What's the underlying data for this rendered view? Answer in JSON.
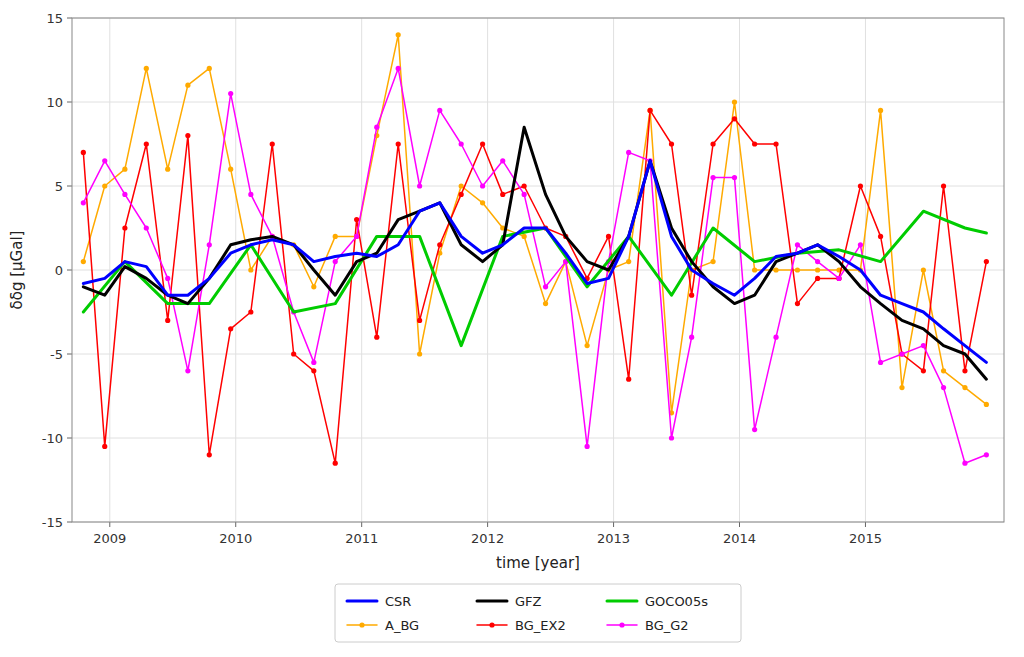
{
  "chart_data": {
    "type": "line",
    "xlabel": "time [year]",
    "ylabel": "δδg [μGal]",
    "xlim": [
      2008.7,
      2016.1
    ],
    "ylim": [
      -15,
      15
    ],
    "xticks": [
      2009,
      2010,
      2011,
      2012,
      2013,
      2014,
      2015
    ],
    "yticks": [
      -15,
      -10,
      -5,
      0,
      5,
      10,
      15
    ],
    "grid": true,
    "legend": "bottom",
    "series": [
      {
        "name": "CSR",
        "color": "#0000ff",
        "x": [
          2008.79,
          2008.96,
          2009.12,
          2009.29,
          2009.46,
          2009.62,
          2009.79,
          2009.96,
          2010.12,
          2010.29,
          2010.46,
          2010.62,
          2010.79,
          2010.96,
          2011.12,
          2011.29,
          2011.46,
          2011.62,
          2011.79,
          2011.96,
          2012.12,
          2012.29,
          2012.46,
          2012.62,
          2012.79,
          2012.96,
          2013.12,
          2013.29,
          2013.46,
          2013.62,
          2013.79,
          2013.96,
          2014.12,
          2014.29,
          2014.46,
          2014.62,
          2014.79,
          2014.96,
          2015.12,
          2015.29,
          2015.46,
          2015.62,
          2015.79,
          2015.96
        ],
        "values": [
          -0.8,
          -0.5,
          0.5,
          0.2,
          -1.5,
          -1.5,
          -0.5,
          1.0,
          1.5,
          1.8,
          1.5,
          0.5,
          0.8,
          1.0,
          0.8,
          1.5,
          3.5,
          4.0,
          2.0,
          1.0,
          1.5,
          2.5,
          2.5,
          1.0,
          -0.8,
          -0.5,
          2.0,
          6.5,
          2.0,
          0.0,
          -0.8,
          -1.5,
          -0.5,
          0.8,
          1.0,
          1.5,
          0.8,
          0.0,
          -1.5,
          -2.0,
          -2.5,
          -3.5,
          -4.5,
          -5.5
        ]
      },
      {
        "name": "GFZ",
        "color": "#000000",
        "x": [
          2008.79,
          2008.96,
          2009.12,
          2009.29,
          2009.46,
          2009.62,
          2009.79,
          2009.96,
          2010.12,
          2010.29,
          2010.46,
          2010.62,
          2010.79,
          2010.96,
          2011.12,
          2011.29,
          2011.46,
          2011.62,
          2011.79,
          2011.96,
          2012.12,
          2012.29,
          2012.46,
          2012.62,
          2012.79,
          2012.96,
          2013.12,
          2013.29,
          2013.46,
          2013.62,
          2013.79,
          2013.96,
          2014.12,
          2014.29,
          2014.46,
          2014.62,
          2014.79,
          2014.96,
          2015.12,
          2015.29,
          2015.46,
          2015.62,
          2015.79,
          2015.96
        ],
        "values": [
          -1.0,
          -1.5,
          0.2,
          -0.5,
          -1.5,
          -2.0,
          -0.5,
          1.5,
          1.8,
          2.0,
          1.5,
          0.0,
          -1.5,
          0.5,
          1.0,
          3.0,
          3.5,
          4.0,
          1.5,
          0.5,
          1.5,
          8.5,
          4.5,
          2.0,
          0.5,
          0.0,
          2.0,
          6.5,
          2.5,
          0.5,
          -1.0,
          -2.0,
          -1.5,
          0.5,
          1.0,
          1.5,
          0.5,
          -1.0,
          -2.0,
          -3.0,
          -3.5,
          -4.5,
          -5.0,
          -6.5
        ]
      },
      {
        "name": "GOCO05s",
        "color": "#00cc00",
        "x": [
          2008.79,
          2009.12,
          2009.46,
          2009.79,
          2010.12,
          2010.46,
          2010.79,
          2011.12,
          2011.46,
          2011.79,
          2012.12,
          2012.46,
          2012.79,
          2013.12,
          2013.46,
          2013.79,
          2014.12,
          2014.46,
          2014.79,
          2015.12,
          2015.46,
          2015.79,
          2015.96
        ],
        "values": [
          -2.5,
          0.5,
          -2.0,
          -2.0,
          1.5,
          -2.5,
          -2.0,
          2.0,
          2.0,
          -4.5,
          2.0,
          2.5,
          -1.0,
          2.0,
          -1.5,
          2.5,
          0.5,
          1.0,
          1.2,
          0.5,
          3.5,
          2.5,
          2.2
        ]
      },
      {
        "name": "A_BG",
        "color": "#ffaa00",
        "marker": "circle",
        "x": [
          2008.79,
          2008.96,
          2009.12,
          2009.29,
          2009.46,
          2009.62,
          2009.79,
          2009.96,
          2010.12,
          2010.29,
          2010.46,
          2010.62,
          2010.79,
          2010.96,
          2011.12,
          2011.29,
          2011.46,
          2011.62,
          2011.79,
          2011.96,
          2012.12,
          2012.29,
          2012.46,
          2012.62,
          2012.79,
          2012.96,
          2013.12,
          2013.29,
          2013.46,
          2013.62,
          2013.79,
          2013.96,
          2014.12,
          2014.29,
          2014.46,
          2014.62,
          2014.79,
          2014.96,
          2015.12,
          2015.29,
          2015.46,
          2015.62,
          2015.79,
          2015.96
        ],
        "values": [
          0.5,
          5.0,
          6.0,
          12.0,
          6.0,
          11.0,
          12.0,
          6.0,
          0.0,
          2.0,
          1.5,
          -1.0,
          2.0,
          2.0,
          8.0,
          14.0,
          -5.0,
          1.0,
          5.0,
          4.0,
          2.5,
          2.0,
          -2.0,
          0.5,
          -4.5,
          0.0,
          0.5,
          9.5,
          -8.5,
          0.0,
          0.5,
          10.0,
          0.0,
          0.0,
          0.0,
          0.0,
          0.0,
          0.0,
          9.5,
          -7.0,
          0.0,
          -6.0,
          -7.0,
          -8.0
        ]
      },
      {
        "name": "BG_EX2",
        "color": "#ff0000",
        "marker": "circle",
        "x": [
          2008.79,
          2008.96,
          2009.12,
          2009.29,
          2009.46,
          2009.62,
          2009.79,
          2009.96,
          2010.12,
          2010.29,
          2010.46,
          2010.62,
          2010.79,
          2010.96,
          2011.12,
          2011.29,
          2011.46,
          2011.62,
          2011.79,
          2011.96,
          2012.12,
          2012.29,
          2012.46,
          2012.62,
          2012.79,
          2012.96,
          2013.12,
          2013.29,
          2013.46,
          2013.62,
          2013.79,
          2013.96,
          2014.12,
          2014.29,
          2014.46,
          2014.62,
          2014.79,
          2014.96,
          2015.12,
          2015.29,
          2015.46,
          2015.62,
          2015.79,
          2015.96
        ],
        "values": [
          7.0,
          -10.5,
          2.5,
          7.5,
          -3.0,
          8.0,
          -11.0,
          -3.5,
          -2.5,
          7.5,
          -5.0,
          -6.0,
          -11.5,
          3.0,
          -4.0,
          7.5,
          -3.0,
          1.5,
          4.5,
          7.5,
          4.5,
          5.0,
          2.5,
          2.0,
          -0.5,
          2.0,
          -6.5,
          9.5,
          7.5,
          -1.5,
          7.5,
          9.0,
          7.5,
          7.5,
          -2.0,
          -0.5,
          -0.5,
          5.0,
          2.0,
          -5.0,
          -6.0,
          5.0,
          -6.0,
          0.5
        ]
      },
      {
        "name": "BG_G2",
        "color": "#ff00ff",
        "marker": "circle",
        "x": [
          2008.79,
          2008.96,
          2009.12,
          2009.29,
          2009.46,
          2009.62,
          2009.79,
          2009.96,
          2010.12,
          2010.29,
          2010.46,
          2010.62,
          2010.79,
          2010.96,
          2011.12,
          2011.29,
          2011.46,
          2011.62,
          2011.79,
          2011.96,
          2012.12,
          2012.29,
          2012.46,
          2012.62,
          2012.79,
          2012.96,
          2013.12,
          2013.29,
          2013.46,
          2013.62,
          2013.79,
          2013.96,
          2014.12,
          2014.29,
          2014.46,
          2014.62,
          2014.79,
          2014.96,
          2015.12,
          2015.29,
          2015.46,
          2015.62,
          2015.79,
          2015.96
        ],
        "values": [
          4.0,
          6.5,
          4.5,
          2.5,
          -0.5,
          -6.0,
          1.5,
          10.5,
          4.5,
          2.0,
          -2.5,
          -5.5,
          0.5,
          2.0,
          8.5,
          12.0,
          5.0,
          9.5,
          7.5,
          5.0,
          6.5,
          4.5,
          -1.0,
          0.5,
          -10.5,
          0.5,
          7.0,
          6.5,
          -10.0,
          -4.0,
          5.5,
          5.5,
          -9.5,
          -4.0,
          1.5,
          0.5,
          -0.5,
          1.5,
          -5.5,
          -5.0,
          -4.5,
          -7.0,
          -11.5,
          -11.0
        ]
      }
    ]
  }
}
